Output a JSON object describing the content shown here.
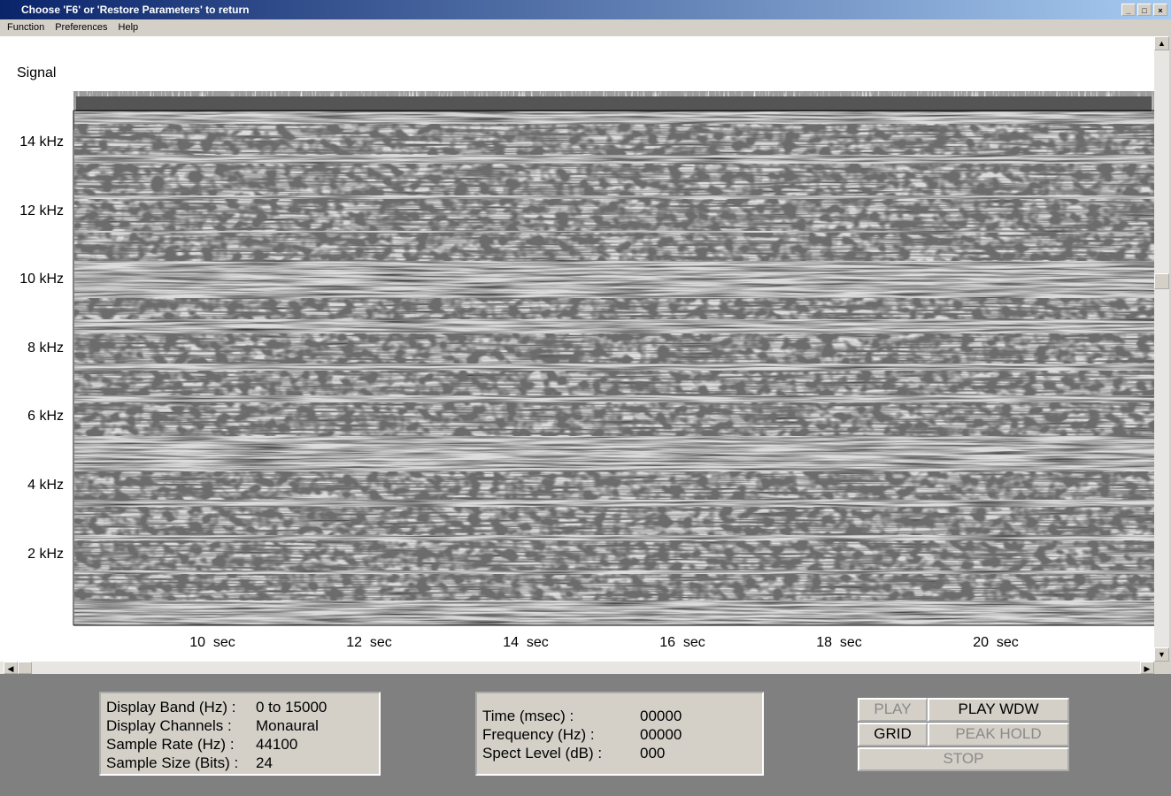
{
  "window": {
    "title": "Choose 'F6' or 'Restore Parameters' to return",
    "menu": [
      "Function",
      "Preferences",
      "Help"
    ]
  },
  "plot": {
    "signal_label": "Signal",
    "freq_labels": [
      "14 kHz",
      "12 kHz",
      "10 kHz",
      "8 kHz",
      "6 kHz",
      "4 kHz",
      "2 kHz"
    ],
    "time_labels": [
      "10  sec",
      "12  sec",
      "14  sec",
      "16  sec",
      "18  sec",
      "20  sec"
    ]
  },
  "info": {
    "rows": [
      {
        "label": "Display Band (Hz) :",
        "value": "0 to 15000"
      },
      {
        "label": "Display Channels :",
        "value": "Monaural"
      },
      {
        "label": "Sample Rate (Hz) :",
        "value": "44100"
      },
      {
        "label": "Sample Size (Bits) :",
        "value": "24"
      }
    ]
  },
  "cursor": {
    "rows": [
      {
        "label": "Time (msec) :",
        "value": "00000"
      },
      {
        "label": "Frequency (Hz) :",
        "value": "00000"
      },
      {
        "label": "Spect Level (dB) :",
        "value": "000"
      }
    ]
  },
  "buttons": {
    "play": "PLAY",
    "play_wdw": "PLAY WDW",
    "grid": "GRID",
    "peak_hold": "PEAK HOLD",
    "stop": "STOP"
  }
}
